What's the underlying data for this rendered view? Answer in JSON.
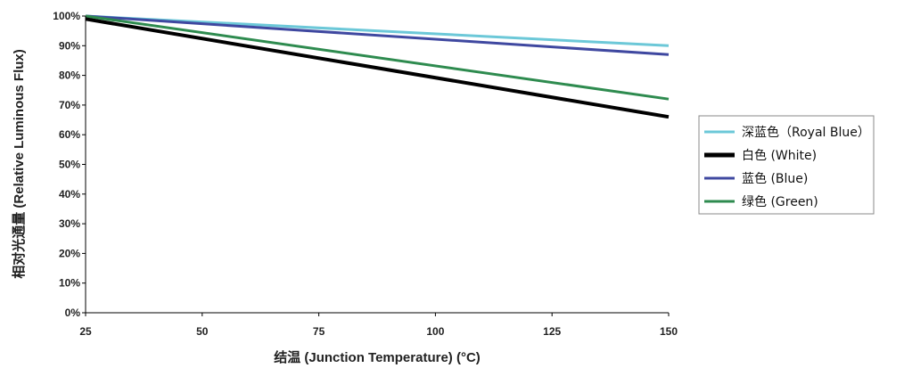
{
  "chart_data": {
    "type": "line",
    "xlabel": "结温 (Junction Temperature) (°C)",
    "ylabel": "相对光通量 (Relative Luminous Flux)",
    "xlim": [
      25,
      150
    ],
    "ylim": [
      0,
      100
    ],
    "x_ticks": [
      "25",
      "50",
      "75",
      "100",
      "125",
      "150"
    ],
    "y_ticks": [
      "0%",
      "10%",
      "20%",
      "30%",
      "40%",
      "50%",
      "60%",
      "70%",
      "80%",
      "90%",
      "100%"
    ],
    "grid": false,
    "legend_position": "right",
    "series": [
      {
        "name": "深蓝色（Royal Blue）",
        "color": "#6cc8d8",
        "x": [
          25,
          150
        ],
        "y": [
          100,
          90
        ]
      },
      {
        "name": "白色 (White)",
        "color": "#000000",
        "x": [
          25,
          150
        ],
        "y": [
          99,
          66
        ]
      },
      {
        "name": "蓝色 (Blue)",
        "color": "#3f48a0",
        "x": [
          25,
          150
        ],
        "y": [
          100,
          87
        ]
      },
      {
        "name": "绿色 (Green)",
        "color": "#2e8b4f",
        "x": [
          25,
          150
        ],
        "y": [
          100,
          72
        ]
      }
    ]
  }
}
